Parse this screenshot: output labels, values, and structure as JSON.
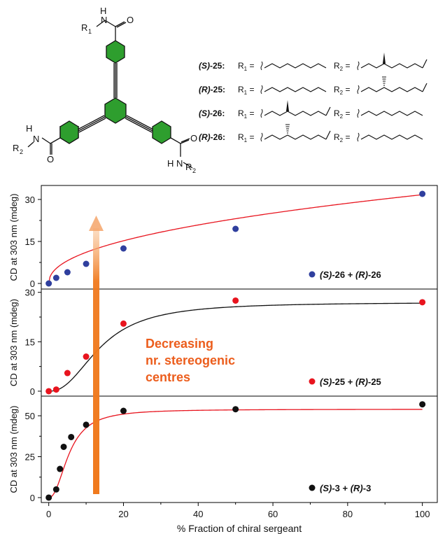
{
  "colors": {
    "ring_fill": "#2e9e2e",
    "ring_stroke": "#111111",
    "fit_red": "#e8141e",
    "fit_black": "#111111",
    "series_blue": "#2f3f9e",
    "series_red": "#e8141e",
    "series_black": "#111111",
    "arrow": "#f07a1e",
    "annotation": "#ec5d1c",
    "axis": "#000000"
  },
  "structure": {
    "label_r1": "R",
    "label_r1_sub": "1",
    "label_r2_left": "R",
    "label_r2_left_sub": "2",
    "label_r2_right": "R",
    "label_r2_right_sub": "2",
    "atom_n": "N",
    "atom_h": "H",
    "atom_o": "O"
  },
  "compounds": [
    {
      "config": "(S)",
      "name": "-25:",
      "r1_tail": "linear",
      "r2_tail": "branched-wedge"
    },
    {
      "config": "(R)",
      "name": "-25:",
      "r1_tail": "linear",
      "r2_tail": "branched-hash"
    },
    {
      "config": "(S)",
      "name": "-26:",
      "r1_tail": "branched-wedge",
      "r2_tail": "linear"
    },
    {
      "config": "(R)",
      "name": "-26:",
      "r1_tail": "branched-hash",
      "r2_tail": "linear"
    }
  ],
  "compound_labels": {
    "r1": "R",
    "r1_sub": "1",
    "r2": "R",
    "r2_sub": "2",
    "eq": " ="
  },
  "annotation": {
    "lines": [
      "Decreasing",
      "nr. stereogenic",
      "centres"
    ]
  },
  "chart_data": [
    {
      "type": "scatter",
      "panel": "top",
      "ylabel": "CD at 303 nm (mdeg)",
      "ylim": [
        -2,
        35
      ],
      "yticks": [
        "0",
        "15",
        "30"
      ],
      "legend": {
        "prefix": "(S)",
        "middle": "-26 + ",
        "prefix2": "(R)",
        "suffix": "-26"
      },
      "legend_position": "bottom-right",
      "points": {
        "x": [
          0,
          2,
          5,
          10,
          20,
          50,
          100
        ],
        "y": [
          0,
          2,
          4,
          7,
          12.5,
          19.5,
          32
        ]
      },
      "fit": "power"
    },
    {
      "type": "scatter",
      "panel": "middle",
      "ylabel": "CD at 303 nm (mdeg)",
      "ylim": [
        -1.5,
        31
      ],
      "yticks": [
        "0",
        "15",
        "30"
      ],
      "legend": {
        "prefix": "(S)",
        "middle": "-25 + ",
        "prefix2": "(R)",
        "suffix": "-25"
      },
      "legend_position": "bottom-right",
      "points": {
        "x": [
          0,
          2,
          5,
          10,
          20,
          50,
          100
        ],
        "y": [
          0,
          0.5,
          5.5,
          10.5,
          20.5,
          27.5,
          27
        ]
      },
      "fit": "sigmoid"
    },
    {
      "type": "scatter",
      "panel": "bottom",
      "ylabel": "CD at 303 nm (mdeg)",
      "ylim": [
        -3,
        62
      ],
      "yticks": [
        "0",
        "25",
        "50"
      ],
      "legend": {
        "prefix": "(S)",
        "middle": "-3 + ",
        "prefix2": "(R)",
        "suffix": "-3"
      },
      "legend_position": "bottom-right",
      "points": {
        "x": [
          0,
          2,
          3,
          4,
          6,
          10,
          20,
          50,
          100
        ],
        "y": [
          0,
          5,
          17.5,
          31,
          37,
          44.5,
          53,
          54,
          57
        ]
      },
      "fit": "saturation",
      "xlabel": "% Fraction of chiral sergeant",
      "xlim": [
        -2,
        104
      ],
      "xticks": [
        "0",
        "20",
        "40",
        "60",
        "80",
        "100"
      ]
    }
  ]
}
